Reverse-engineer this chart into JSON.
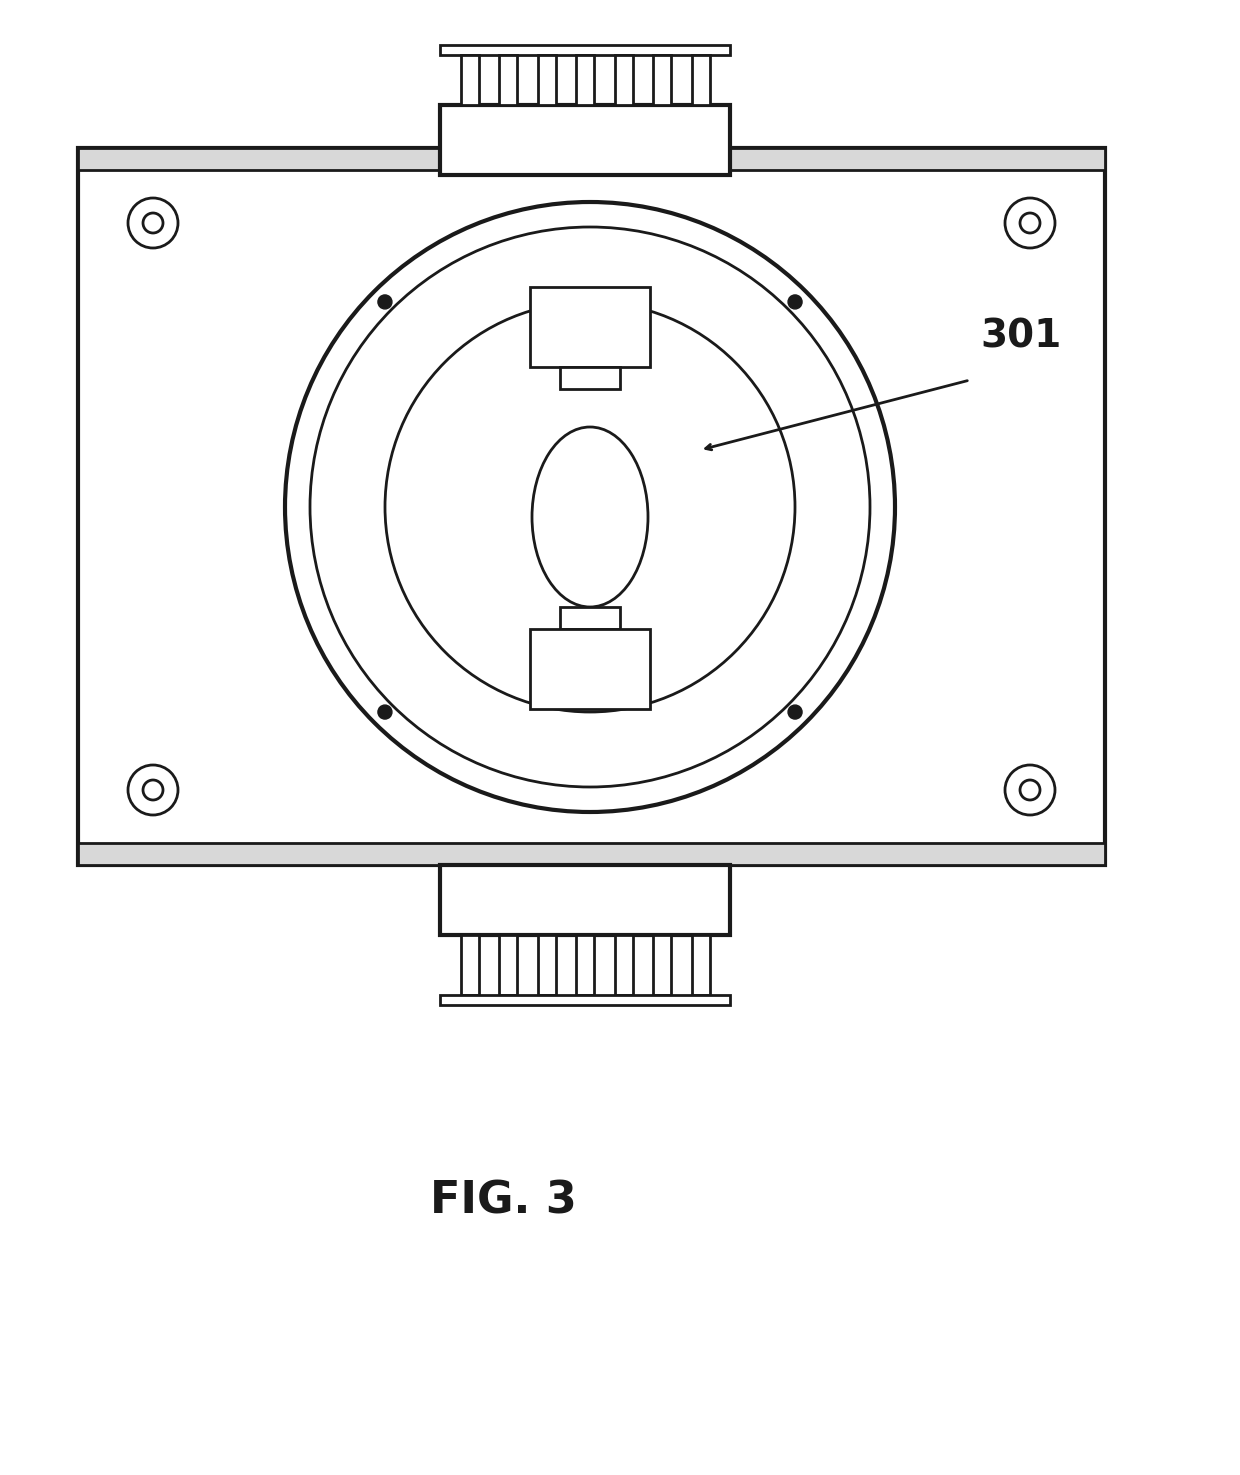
{
  "background_color": "#ffffff",
  "line_color": "#1a1a1a",
  "fig_label": "FIG. 3",
  "fig_label_fontsize": 32,
  "fig_label_fontweight": "bold",
  "annotation_label": "301",
  "annotation_fontsize": 28,
  "annotation_fontweight": "bold"
}
